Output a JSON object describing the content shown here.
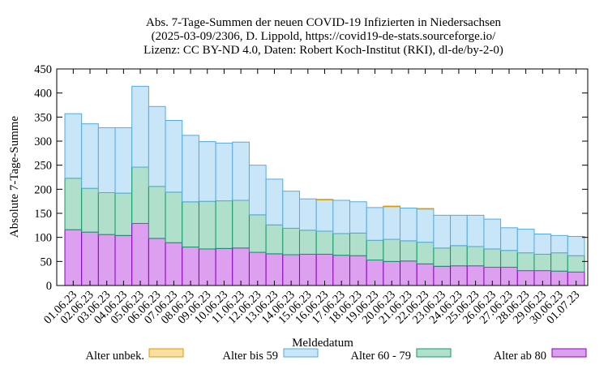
{
  "chart_data": {
    "type": "bar",
    "stacked": true,
    "title": [
      "Abs. 7-Tage-Summen der neuen COVID-19 Infizierten in Niedersachsen",
      "(2025-03-09/2306, D. Lippold, https://covid19-de-stats.sourceforge.io/",
      "Lizenz: CC BY-ND 4.0, Daten: Robert Koch-Institut (RKI), dl-de/by-2-0)"
    ],
    "xlabel": "Meldedatum",
    "ylabel": "Absolute 7-Tage-Summe",
    "ylim": [
      0,
      450
    ],
    "yticks": [
      0,
      50,
      100,
      150,
      200,
      250,
      300,
      350,
      400,
      450
    ],
    "grid": false,
    "legend_position": "bottom",
    "categories": [
      "01.06.23",
      "02.06.23",
      "03.06.23",
      "04.06.23",
      "05.06.23",
      "06.06.23",
      "07.06.23",
      "08.06.23",
      "09.06.23",
      "10.06.23",
      "11.06.23",
      "12.06.23",
      "13.06.23",
      "14.06.23",
      "15.06.23",
      "16.06.23",
      "17.06.23",
      "18.06.23",
      "19.06.23",
      "20.06.23",
      "21.06.23",
      "22.06.23",
      "23.06.23",
      "24.06.23",
      "25.06.23",
      "26.06.23",
      "27.06.23",
      "28.06.23",
      "29.06.23",
      "30.06.23",
      "01.07.23"
    ],
    "series": [
      {
        "name": "Alter ab 80",
        "color": "#dda0f0",
        "edge": "#8800bb",
        "values": [
          116,
          111,
          106,
          104,
          129,
          98,
          89,
          80,
          76,
          77,
          78,
          69,
          66,
          64,
          65,
          65,
          63,
          62,
          53,
          50,
          51,
          45,
          40,
          41,
          41,
          38,
          38,
          31,
          31,
          30,
          28
        ]
      },
      {
        "name": "Alter 60 - 79",
        "color": "#b0e0cc",
        "edge": "#119966",
        "values": [
          107,
          91,
          87,
          88,
          117,
          108,
          105,
          94,
          99,
          99,
          99,
          78,
          60,
          55,
          50,
          48,
          45,
          47,
          41,
          46,
          42,
          45,
          38,
          42,
          40,
          38,
          35,
          37,
          34,
          38,
          34
        ]
      },
      {
        "name": "Alter bis 59",
        "color": "#c8e6f8",
        "edge": "#55aadd",
        "values": [
          134,
          134,
          135,
          136,
          168,
          166,
          149,
          138,
          124,
          120,
          121,
          103,
          95,
          77,
          65,
          65,
          69,
          65,
          68,
          68,
          68,
          69,
          68,
          63,
          65,
          62,
          47,
          49,
          42,
          36,
          40
        ]
      },
      {
        "name": "Alter unbek.",
        "color": "#fae0a0",
        "edge": "#dd9900",
        "values": [
          0,
          0,
          0,
          0,
          0,
          0,
          0,
          0,
          0,
          0,
          0,
          0,
          0,
          0,
          0,
          1,
          0,
          0,
          0,
          1,
          0,
          1,
          0,
          0,
          0,
          0,
          0,
          0,
          0,
          0,
          0
        ]
      }
    ],
    "legend_order": [
      "Alter unbek.",
      "Alter bis 59",
      "Alter 60 - 79",
      "Alter ab 80"
    ]
  }
}
